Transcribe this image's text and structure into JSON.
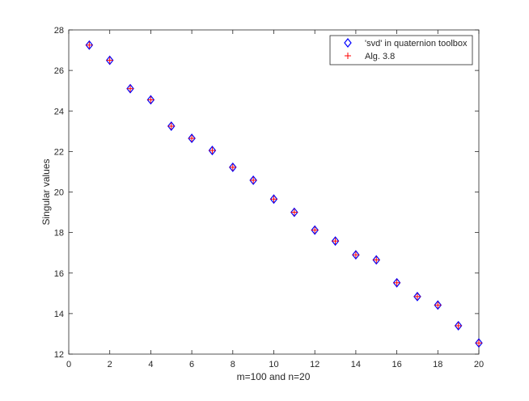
{
  "chart_data": {
    "type": "scatter",
    "xlabel": "m=100 and n=20",
    "ylabel": "Singular values",
    "xlim": [
      0,
      20
    ],
    "ylim": [
      12,
      28
    ],
    "xticks": [
      0,
      2,
      4,
      6,
      8,
      10,
      12,
      14,
      16,
      18,
      20
    ],
    "yticks": [
      12,
      14,
      16,
      18,
      20,
      22,
      24,
      26,
      28
    ],
    "grid": false,
    "legend_position": "top-right",
    "series": [
      {
        "name": "'svd' in quaternion toolbox",
        "marker": "diamond",
        "color": "#0000ff",
        "x": [
          1,
          2,
          3,
          4,
          5,
          6,
          7,
          8,
          9,
          10,
          11,
          12,
          13,
          14,
          15,
          16,
          17,
          18,
          19,
          20
        ],
        "y": [
          27.25,
          26.5,
          25.1,
          24.55,
          23.25,
          22.65,
          22.05,
          21.22,
          20.58,
          19.65,
          19.0,
          18.12,
          17.58,
          16.9,
          16.65,
          15.52,
          14.84,
          14.42,
          13.4,
          12.55
        ]
      },
      {
        "name": "Alg. 3.8",
        "marker": "plus",
        "color": "#ff0000",
        "x": [
          1,
          2,
          3,
          4,
          5,
          6,
          7,
          8,
          9,
          10,
          11,
          12,
          13,
          14,
          15,
          16,
          17,
          18,
          19,
          20
        ],
        "y": [
          27.25,
          26.5,
          25.1,
          24.55,
          23.25,
          22.65,
          22.05,
          21.22,
          20.58,
          19.65,
          19.0,
          18.12,
          17.58,
          16.9,
          16.65,
          15.52,
          14.84,
          14.42,
          13.4,
          12.55
        ]
      }
    ]
  }
}
